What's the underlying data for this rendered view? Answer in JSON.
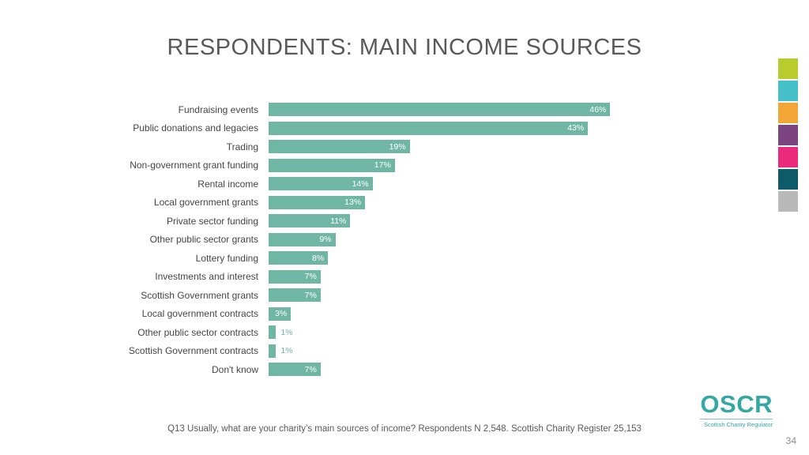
{
  "slide": {
    "title": "RESPONDENTS: MAIN INCOME SOURCES",
    "footer": "Q13 Usually, what are your charity’s main sources of income? Respondents N 2,548. Scottish Charity Register 25,153",
    "page_number": "34"
  },
  "logo": {
    "name": "OSCR",
    "tagline": "Scottish Charity Regulator",
    "color": "#35a8a3"
  },
  "chart_data": {
    "type": "bar",
    "orientation": "horizontal",
    "title": "RESPONDENTS: MAIN INCOME SOURCES",
    "categories": [
      "Fundraising events",
      "Public donations and legacies",
      "Trading",
      "Non-government grant funding",
      "Rental income",
      "Local government grants",
      "Private sector funding",
      "Other public sector grants",
      "Lottery funding",
      "Investments and interest",
      "Scottish Government grants",
      "Local government contracts",
      "Other public sector contracts",
      "Scottish Government contracts",
      "Don't know"
    ],
    "values": [
      46,
      43,
      19,
      17,
      14,
      13,
      11,
      9,
      8,
      7,
      7,
      3,
      1,
      1,
      7
    ],
    "value_labels": [
      "46%",
      "43%",
      "19%",
      "17%",
      "14%",
      "13%",
      "11%",
      "9%",
      "8%",
      "7%",
      "7%",
      "3%",
      "1%",
      "1%",
      "7%"
    ],
    "xlabel": "",
    "ylabel": "",
    "xlim": [
      0,
      50
    ],
    "grid": false,
    "legend": false,
    "bar_color": "#70b6a4",
    "outside_label_color": "#70b6a4"
  },
  "decoration": {
    "strip_colors": [
      "#b8cc2e",
      "#47c1c9",
      "#f2a636",
      "#7b4480",
      "#ea2a7b",
      "#0d5a68",
      "#b9b9b9"
    ]
  }
}
